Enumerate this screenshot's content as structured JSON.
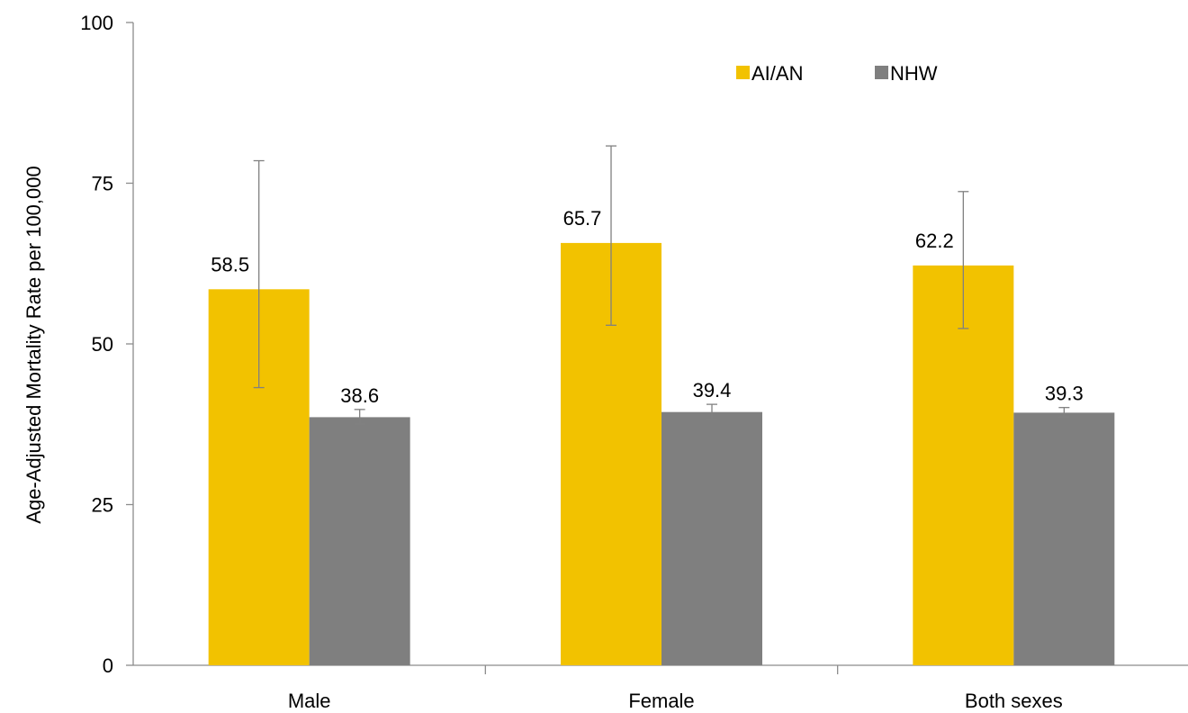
{
  "chart_data": {
    "type": "bar",
    "ylabel": "Age-Adjusted Mortality Rate per 100,000",
    "ylim": [
      0,
      100
    ],
    "yticks": [
      0,
      25,
      50,
      75,
      100
    ],
    "grid": false,
    "legend_position": "top-right",
    "categories": [
      "Male",
      "Female",
      "Both sexes"
    ],
    "series": [
      {
        "name": "AI/AN",
        "color": "#F2C200",
        "values": [
          58.5,
          65.7,
          62.2
        ],
        "labels": [
          "58.5",
          "65.7",
          "62.2"
        ],
        "error_low": [
          43.2,
          52.9,
          52.4
        ],
        "error_high": [
          78.5,
          80.8,
          73.7
        ]
      },
      {
        "name": "NHW",
        "color": "#7F7F7F",
        "values": [
          38.6,
          39.4,
          39.3
        ],
        "labels": [
          "38.6",
          "39.4",
          "39.3"
        ],
        "error_low": [
          37.5,
          38.3,
          38.6
        ],
        "error_high": [
          39.8,
          40.6,
          40.1
        ]
      }
    ]
  }
}
